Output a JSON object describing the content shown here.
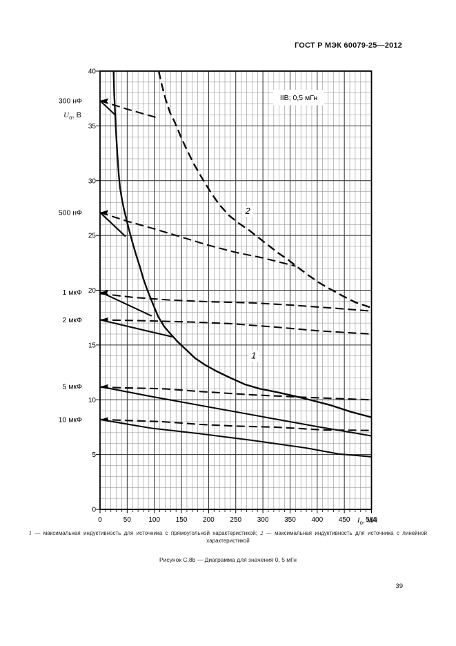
{
  "page": {
    "header": "ГОСТ Р МЭК 60079-25—2012",
    "page_number": "39"
  },
  "chart_data": {
    "type": "line",
    "legend": "IIB; 0,5 мГн",
    "x_axis": {
      "sym": "I",
      "sub": "о",
      "unit": ", мА",
      "min": 0,
      "max": 500,
      "major_step": 50,
      "minor_step": 10,
      "ticks": [
        0,
        50,
        100,
        150,
        200,
        250,
        300,
        350,
        400,
        450,
        500
      ]
    },
    "y_axis": {
      "sym": "U",
      "sub": "о",
      "unit": ", В",
      "min": 0,
      "max": 40,
      "major_step": 5,
      "minor_step": 1,
      "ticks": [
        0,
        5,
        10,
        15,
        20,
        25,
        30,
        35,
        40
      ]
    },
    "grid": true,
    "curve_labels": [
      {
        "text": "1",
        "x": 283,
        "y": 13.75
      },
      {
        "text": "2",
        "x": 272,
        "y": 26.95
      }
    ],
    "cap_marks": [
      {
        "label": "300 нФ",
        "u0": 37.3
      },
      {
        "label": "500 нФ",
        "u0": 27.1
      },
      {
        "label": "1 мкФ",
        "u0": 19.8
      },
      {
        "label": "2 мкФ",
        "u0": 17.3
      },
      {
        "label": "5 мкФ",
        "u0": 11.2
      },
      {
        "label": "10 мкФ",
        "u0": 8.2
      }
    ],
    "series": [
      {
        "name": "L-limit-rectangular",
        "label": "1",
        "style": "solid",
        "width": 2.4,
        "points": [
          [
            25,
            40
          ],
          [
            26,
            38
          ],
          [
            27.5,
            36.5
          ],
          [
            28.5,
            35.5
          ],
          [
            30,
            34
          ],
          [
            32,
            32.3
          ],
          [
            34.5,
            30.5
          ],
          [
            37,
            29.3
          ],
          [
            40,
            28.4
          ],
          [
            44,
            27.4
          ],
          [
            48,
            26.6
          ],
          [
            53,
            25.6
          ],
          [
            59,
            24.5
          ],
          [
            66,
            23.3
          ],
          [
            73,
            22.2
          ],
          [
            80,
            21.0
          ],
          [
            88,
            19.9
          ],
          [
            97,
            18.8
          ],
          [
            107,
            17.6
          ],
          [
            118,
            16.7
          ],
          [
            130,
            16.0
          ],
          [
            143,
            15.3
          ],
          [
            158,
            14.6
          ],
          [
            175,
            13.8
          ],
          [
            193,
            13.2
          ],
          [
            215,
            12.6
          ],
          [
            240,
            12.0
          ],
          [
            267,
            11.4
          ],
          [
            295,
            11.0
          ],
          [
            325,
            10.7
          ],
          [
            357,
            10.35
          ],
          [
            390,
            9.95
          ],
          [
            425,
            9.5
          ],
          [
            462,
            8.9
          ],
          [
            500,
            8.4
          ]
        ]
      },
      {
        "name": "L-limit-linear",
        "label": "2",
        "style": "dashed",
        "width": 2.4,
        "points": [
          [
            108,
            40
          ],
          [
            114,
            38.7
          ],
          [
            121,
            37.4
          ],
          [
            129,
            36.2
          ],
          [
            138,
            35.3
          ],
          [
            148,
            34.1
          ],
          [
            160,
            32.8
          ],
          [
            173,
            31.5
          ],
          [
            187,
            30.3
          ],
          [
            203,
            29.0
          ],
          [
            220,
            27.8
          ],
          [
            238,
            26.8
          ],
          [
            256,
            26.1
          ],
          [
            274,
            25.5
          ],
          [
            292,
            24.8
          ],
          [
            310,
            24.1
          ],
          [
            328,
            23.4
          ],
          [
            346,
            22.8
          ],
          [
            364,
            22.1
          ],
          [
            383,
            21.4
          ],
          [
            403,
            20.7
          ],
          [
            424,
            20.1
          ],
          [
            446,
            19.5
          ],
          [
            470,
            18.9
          ],
          [
            500,
            18.4
          ]
        ]
      },
      {
        "name": "C-300nF-rectangular",
        "style": "solid",
        "width": 2.1,
        "points": [
          [
            0,
            37.3
          ],
          [
            28,
            36.0
          ]
        ]
      },
      {
        "name": "C-300nF-linear",
        "style": "dashed",
        "width": 2.1,
        "points": [
          [
            0,
            37.3
          ],
          [
            52,
            36.5
          ],
          [
            105,
            35.75
          ]
        ]
      },
      {
        "name": "C-500nF-rectangular",
        "style": "solid",
        "width": 2.1,
        "points": [
          [
            0,
            27.1
          ],
          [
            47,
            24.9
          ]
        ]
      },
      {
        "name": "C-500nF-linear",
        "style": "dashed",
        "width": 2.1,
        "points": [
          [
            0,
            27.1
          ],
          [
            50,
            26.3
          ],
          [
            100,
            25.6
          ],
          [
            150,
            24.85
          ],
          [
            200,
            24.1
          ],
          [
            250,
            23.45
          ],
          [
            300,
            22.95
          ],
          [
            360,
            22.2
          ]
        ]
      },
      {
        "name": "C-1uF-rectangular",
        "style": "solid",
        "width": 2.1,
        "points": [
          [
            0,
            19.85
          ],
          [
            95,
            17.65
          ]
        ]
      },
      {
        "name": "C-1uF-linear",
        "style": "dashed",
        "width": 2.1,
        "points": [
          [
            0,
            19.7
          ],
          [
            60,
            19.35
          ],
          [
            130,
            19.1
          ],
          [
            200,
            18.95
          ],
          [
            280,
            18.85
          ],
          [
            350,
            18.65
          ],
          [
            420,
            18.4
          ],
          [
            500,
            18.1
          ]
        ]
      },
      {
        "name": "C-2uF-rectangular",
        "style": "solid",
        "width": 2.1,
        "points": [
          [
            0,
            17.3
          ],
          [
            85,
            16.3
          ],
          [
            133,
            15.75
          ]
        ]
      },
      {
        "name": "C-2uF-linear",
        "style": "dashed",
        "width": 2.1,
        "points": [
          [
            0,
            17.3
          ],
          [
            90,
            17.2
          ],
          [
            165,
            17.1
          ],
          [
            240,
            16.95
          ],
          [
            320,
            16.65
          ],
          [
            400,
            16.3
          ],
          [
            465,
            16.1
          ],
          [
            500,
            16.0
          ]
        ]
      },
      {
        "name": "C-5uF-rectangular",
        "style": "solid",
        "width": 2.1,
        "points": [
          [
            0,
            11.2
          ],
          [
            100,
            10.25
          ],
          [
            200,
            9.35
          ],
          [
            300,
            8.45
          ],
          [
            400,
            7.55
          ],
          [
            500,
            6.7
          ]
        ]
      },
      {
        "name": "C-5uF-linear",
        "style": "dashed",
        "width": 2.1,
        "points": [
          [
            0,
            11.15
          ],
          [
            120,
            11.0
          ],
          [
            185,
            10.75
          ],
          [
            280,
            10.45
          ],
          [
            390,
            10.2
          ],
          [
            500,
            10.0
          ]
        ]
      },
      {
        "name": "C-10uF-rectangular",
        "style": "solid",
        "width": 2.1,
        "points": [
          [
            0,
            8.2
          ],
          [
            95,
            7.4
          ],
          [
            185,
            6.9
          ],
          [
            280,
            6.3
          ],
          [
            380,
            5.6
          ],
          [
            440,
            5.05
          ],
          [
            500,
            4.8
          ]
        ]
      },
      {
        "name": "C-10uF-linear",
        "style": "dashed",
        "width": 2.1,
        "points": [
          [
            0,
            8.2
          ],
          [
            115,
            8.0
          ],
          [
            185,
            7.75
          ],
          [
            250,
            7.6
          ],
          [
            324,
            7.5
          ],
          [
            410,
            7.25
          ],
          [
            500,
            7.2
          ]
        ]
      }
    ]
  },
  "footnote": {
    "num1": "1",
    "text1": "— максимальная индуктивность для источника с прямоугольной характеристикой;",
    "num2": "2",
    "text2": "— максимальная индуктивность для источника с линейной характеристикой"
  },
  "caption": "Рисунок С.8b — Диаграмма для значения 0, 5 мГн"
}
